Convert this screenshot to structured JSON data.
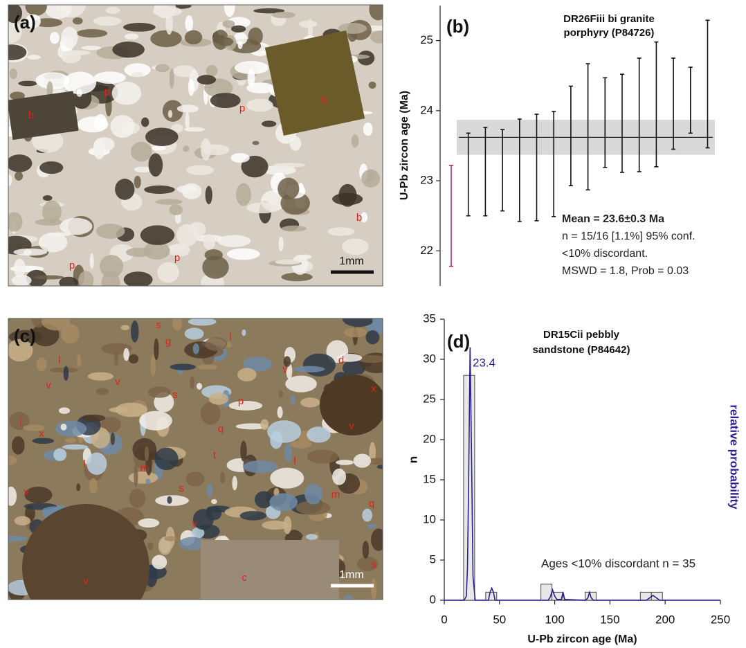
{
  "images": [
    {
      "label": "(a)",
      "scale_bar": "1mm",
      "labels": [
        "p",
        "b",
        "p",
        "b",
        "b",
        "p",
        "p"
      ]
    },
    {
      "label": "(c)",
      "scale_bar": "1mm",
      "labels": [
        "s",
        "g",
        "l",
        "l",
        "d",
        "v",
        "v",
        "v",
        "x",
        "s",
        "p",
        "q",
        "t",
        "v",
        "i",
        "x",
        "l",
        "m",
        "s",
        "l",
        "v",
        "m",
        "q",
        "v",
        "v",
        "c",
        "s"
      ]
    }
  ],
  "chart_data": [
    {
      "type": "errorbar",
      "panel_label": "(b)",
      "title": [
        "DR26Fiii bi granite",
        "porphyry (P84726)"
      ],
      "y_label": "U-Pb zircon age (Ma)",
      "values": [
        22.5,
        23.09,
        23.13,
        23.15,
        23.15,
        23.19,
        23.24,
        23.64,
        23.77,
        23.83,
        23.82,
        23.94,
        24.09,
        24.1,
        24.15,
        24.38
      ],
      "errors": [
        0.72,
        0.59,
        0.63,
        0.58,
        0.73,
        0.76,
        0.75,
        0.71,
        0.9,
        0.64,
        0.7,
        0.81,
        0.89,
        0.65,
        0.47,
        0.91
      ],
      "colors": [
        "#b3286f",
        "#111111",
        "#111111",
        "#111111",
        "#111111",
        "#111111",
        "#111111",
        "#111111",
        "#111111",
        "#111111",
        "#111111",
        "#111111",
        "#111111",
        "#111111",
        "#111111",
        "#111111"
      ],
      "mean": 23.62,
      "mean_band": 0.25,
      "ylim": [
        21.5,
        25.5
      ],
      "yticks": [
        22,
        23,
        24,
        25
      ],
      "annotations": [
        "Mean = 23.6±0.3 Ma",
        "n = 15/16 [1.1%] 95% conf.",
        "<10% discordant.",
        "MSWD = 1.8, Prob = 0.03"
      ]
    },
    {
      "type": "histogram",
      "panel_label": "(d)",
      "title": [
        "DR15Cii pebbly",
        "sandstone (P84642)"
      ],
      "x_label": "U-Pb zircon age (Ma)",
      "y_label": "n",
      "y2_label": "relative probability",
      "bins": [
        17.5,
        27.5,
        37.5,
        47.5,
        57.5,
        67.5,
        77.5,
        87.5,
        97.5,
        107.5,
        117.5,
        127.5,
        137.5,
        147.5,
        157.5,
        167.5,
        177.5,
        187.5,
        197.5
      ],
      "counts": [
        28,
        0,
        1,
        0,
        0,
        0,
        0,
        2,
        1,
        0,
        0,
        1,
        0,
        0,
        0,
        0,
        1,
        1
      ],
      "color": "#e8e8e8",
      "curve": {
        "color": "#2b2090",
        "x": [
          0,
          18,
          20,
          21,
          22,
          23.4,
          24.5,
          26,
          28,
          40,
          41.5,
          43,
          44.5,
          46,
          94,
          96,
          98,
          100,
          102,
          106,
          107.5,
          109,
          128,
          130,
          131.5,
          133,
          135,
          183,
          186,
          189,
          192,
          195,
          250
        ],
        "y": [
          0,
          0,
          0.5,
          4,
          14,
          31.5,
          20,
          3,
          0,
          0,
          1,
          1.5,
          1,
          0,
          0,
          0.4,
          1.3,
          0.5,
          0.1,
          0.1,
          1,
          0.1,
          0,
          0.3,
          1,
          0.3,
          0,
          0,
          0.3,
          0.6,
          0.3,
          0,
          0
        ]
      },
      "peak_label": "23.4",
      "annotation": "Ages <10% discordant n = 35",
      "xlim": [
        0,
        250
      ],
      "xticks": [
        0,
        50,
        100,
        150,
        200,
        250
      ],
      "ylim": [
        0,
        35
      ],
      "yticks": [
        0,
        5,
        10,
        15,
        20,
        25,
        30,
        35
      ]
    }
  ]
}
